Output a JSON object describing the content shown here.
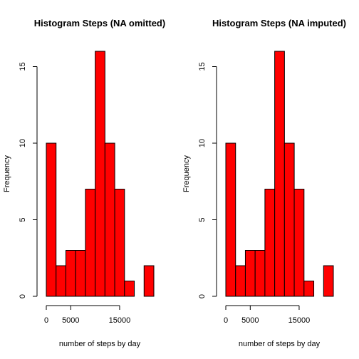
{
  "chart_data": [
    {
      "type": "bar",
      "title": "Histogram Steps (NA omitted)",
      "xlabel": "number of steps by day",
      "ylabel": "Frequency",
      "bin_edges": [
        0,
        2000,
        4000,
        6000,
        8000,
        10000,
        12000,
        14000,
        16000,
        18000,
        20000,
        22000
      ],
      "values": [
        10,
        2,
        3,
        3,
        7,
        16,
        10,
        7,
        1,
        0,
        2
      ],
      "x_ticks": [
        0,
        5000,
        15000
      ],
      "x_tick_labels": [
        "0",
        "5000",
        "15000"
      ],
      "y_ticks": [
        0,
        5,
        10,
        15
      ],
      "y_tick_labels": [
        "0",
        "5",
        "10",
        "15"
      ],
      "xlim": [
        0,
        22000
      ],
      "ylim": [
        0,
        16
      ],
      "bar_color": "#ff0000"
    },
    {
      "type": "bar",
      "title": "Histogram Steps (NA imputed)",
      "xlabel": "number of steps by day",
      "ylabel": "Frequency",
      "bin_edges": [
        0,
        2000,
        4000,
        6000,
        8000,
        10000,
        12000,
        14000,
        16000,
        18000,
        20000,
        22000
      ],
      "values": [
        10,
        2,
        3,
        3,
        7,
        16,
        10,
        7,
        1,
        0,
        2
      ],
      "x_ticks": [
        0,
        5000,
        15000
      ],
      "x_tick_labels": [
        "0",
        "5000",
        "15000"
      ],
      "y_ticks": [
        0,
        5,
        10,
        15
      ],
      "y_tick_labels": [
        "0",
        "5",
        "10",
        "15"
      ],
      "xlim": [
        0,
        22000
      ],
      "ylim": [
        0,
        16
      ],
      "bar_color": "#ff0000"
    }
  ]
}
